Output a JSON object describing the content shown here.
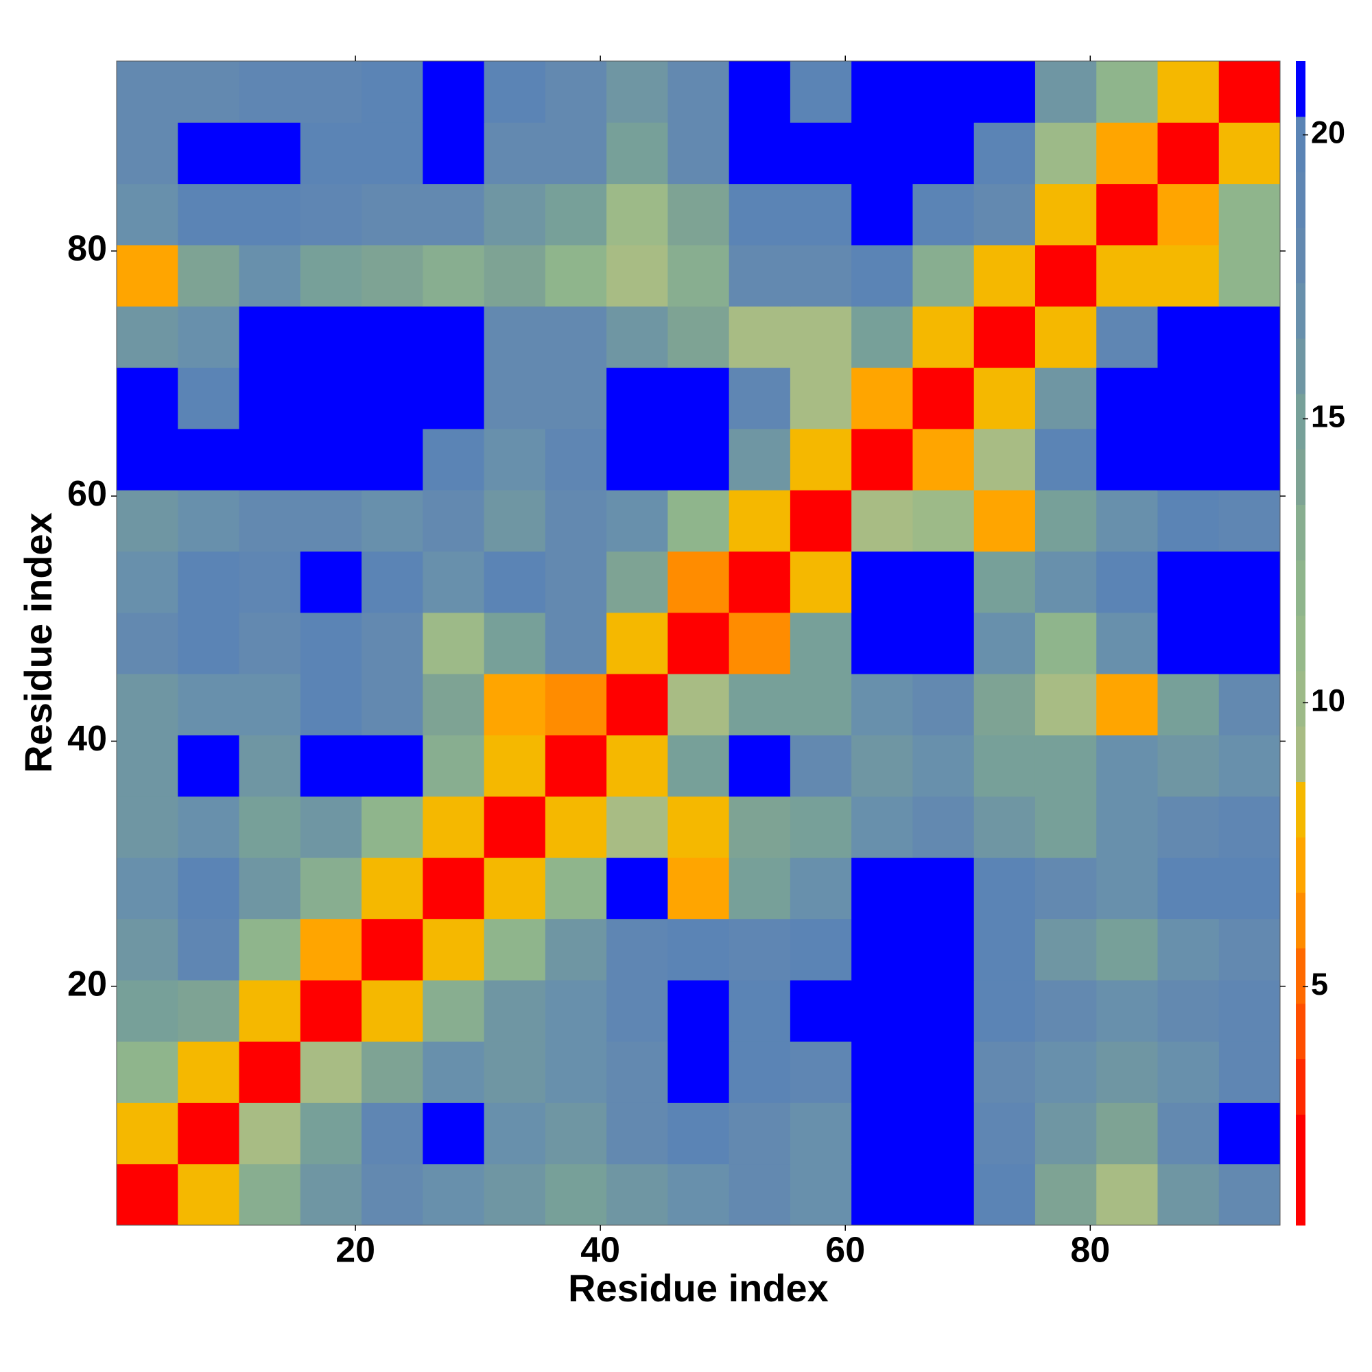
{
  "chart_data": {
    "type": "heatmap",
    "xlabel": "Residue index",
    "ylabel": "Residue index",
    "xbins": [
      0.5,
      5.5,
      10.5,
      15.5,
      20.5,
      25.5,
      30.5,
      35.5,
      40.5,
      45.5,
      50.5,
      55.5,
      60.5,
      65.5,
      70.5,
      75.5,
      80.5,
      85.5,
      90.5,
      95.5
    ],
    "ybins": [
      0.5,
      5.5,
      10.5,
      15.5,
      20.5,
      25.5,
      30.5,
      35.5,
      40.5,
      45.5,
      50.5,
      55.5,
      60.5,
      65.5,
      70.5,
      75.5,
      80.5,
      85.5,
      90.5,
      95.5
    ],
    "xlim": [
      0.5,
      95.5
    ],
    "ylim": [
      0.5,
      95.5
    ],
    "xticks": [
      20,
      40,
      60,
      80
    ],
    "yticks": [
      20,
      40,
      60,
      80
    ],
    "zlim": [
      0.8,
      21.3
    ],
    "zticks": [
      5,
      10,
      15,
      20
    ],
    "colors": [
      "#ff0000",
      "#ff0000",
      "#ff2a00",
      "#ff4f00",
      "#ff6a00",
      "#ff8c00",
      "#ffa500",
      "#f5b800",
      "#a8bc84",
      "#9dba88",
      "#96b98a",
      "#8fb58c",
      "#88ae90",
      "#7ea394",
      "#77a099",
      "#6f96a3",
      "#6890ac",
      "#6389b0",
      "#5f86b3",
      "#5b84b5",
      "#0000ff"
    ],
    "values": [
      [
        2,
        8,
        13,
        16,
        18,
        17,
        16,
        15,
        16,
        17,
        18,
        17,
        21.2,
        21.2,
        20,
        14,
        9,
        16,
        18
      ],
      [
        8,
        2,
        9,
        15,
        19,
        21.2,
        17,
        16,
        18,
        20,
        18,
        17,
        21.2,
        21.2,
        19,
        16,
        14,
        18,
        21.2
      ],
      [
        12,
        8,
        2,
        9,
        14,
        17,
        16,
        17,
        18,
        21,
        20,
        19,
        21.2,
        21.2,
        18,
        17,
        16,
        17,
        19
      ],
      [
        15,
        14,
        8,
        2,
        8,
        13,
        16,
        17,
        19,
        21,
        20,
        21,
        21.2,
        21.2,
        20,
        18,
        17,
        18,
        19
      ],
      [
        16,
        19,
        12,
        7,
        2,
        8,
        12,
        16,
        19,
        20,
        19,
        20,
        21.2,
        21.2,
        20,
        16,
        15,
        17,
        18
      ],
      [
        17,
        20,
        16,
        13,
        8,
        2,
        8,
        12,
        21,
        7,
        15,
        17,
        21.2,
        21.2,
        20,
        18,
        17,
        20,
        20
      ],
      [
        16,
        17,
        15,
        16,
        12,
        8,
        2,
        8,
        9,
        8,
        14,
        15,
        17,
        18,
        16,
        15,
        17,
        18,
        19
      ],
      [
        16,
        21.2,
        16,
        21.2,
        21.2,
        13,
        8,
        2,
        8,
        15,
        21.2,
        18,
        16,
        17,
        15,
        15,
        17,
        16,
        17
      ],
      [
        16,
        17,
        17,
        20,
        18,
        14,
        7,
        6,
        2,
        9,
        15,
        15,
        17,
        18,
        14,
        9,
        7,
        15,
        18
      ],
      [
        18,
        20,
        18,
        20,
        18,
        10,
        15,
        18,
        8,
        2,
        6,
        15,
        21.2,
        21.2,
        17,
        12,
        17,
        21.2,
        21.2
      ],
      [
        17,
        20,
        19,
        21.2,
        20,
        17,
        20,
        18,
        14,
        6,
        2,
        8,
        21.2,
        21.2,
        15,
        17,
        20,
        21.2,
        21
      ],
      [
        16,
        17,
        18,
        18,
        17,
        18,
        16,
        18,
        17,
        12,
        8,
        2,
        9,
        10,
        7,
        15,
        17,
        20,
        19
      ],
      [
        21.2,
        21.2,
        21.2,
        21.2,
        21.2,
        20,
        17,
        19,
        21.2,
        21.2,
        16,
        8,
        2,
        7,
        9,
        20,
        21.2,
        21.2,
        21.2
      ],
      [
        21.2,
        20,
        21.2,
        21.2,
        21.2,
        21.2,
        18,
        18,
        21.2,
        21.2,
        19,
        9,
        7,
        2,
        8,
        16,
        21.2,
        21.2,
        21.2
      ],
      [
        16,
        17,
        21.2,
        21.2,
        21.2,
        21.2,
        18,
        18,
        16,
        14,
        9,
        9,
        15,
        8,
        2,
        8,
        19,
        21.2,
        21.2
      ],
      [
        7,
        14,
        17,
        15,
        14,
        13,
        14,
        12,
        9,
        13,
        18,
        18,
        20,
        13,
        8,
        2,
        8,
        8,
        12
      ],
      [
        17,
        20,
        20,
        19,
        18,
        18,
        16,
        15,
        10,
        14,
        20,
        20,
        21.2,
        20,
        18,
        8,
        2,
        7,
        12
      ],
      [
        18,
        21.2,
        21.2,
        20,
        20,
        21.2,
        18,
        18,
        15,
        18,
        21.2,
        21.2,
        21.2,
        21.2,
        20,
        10,
        7,
        2,
        8
      ],
      [
        18,
        18,
        19,
        19,
        20,
        21.2,
        20,
        18,
        16,
        18,
        21.2,
        20,
        21.2,
        21.2,
        21.2,
        16,
        12,
        8,
        2
      ]
    ]
  }
}
